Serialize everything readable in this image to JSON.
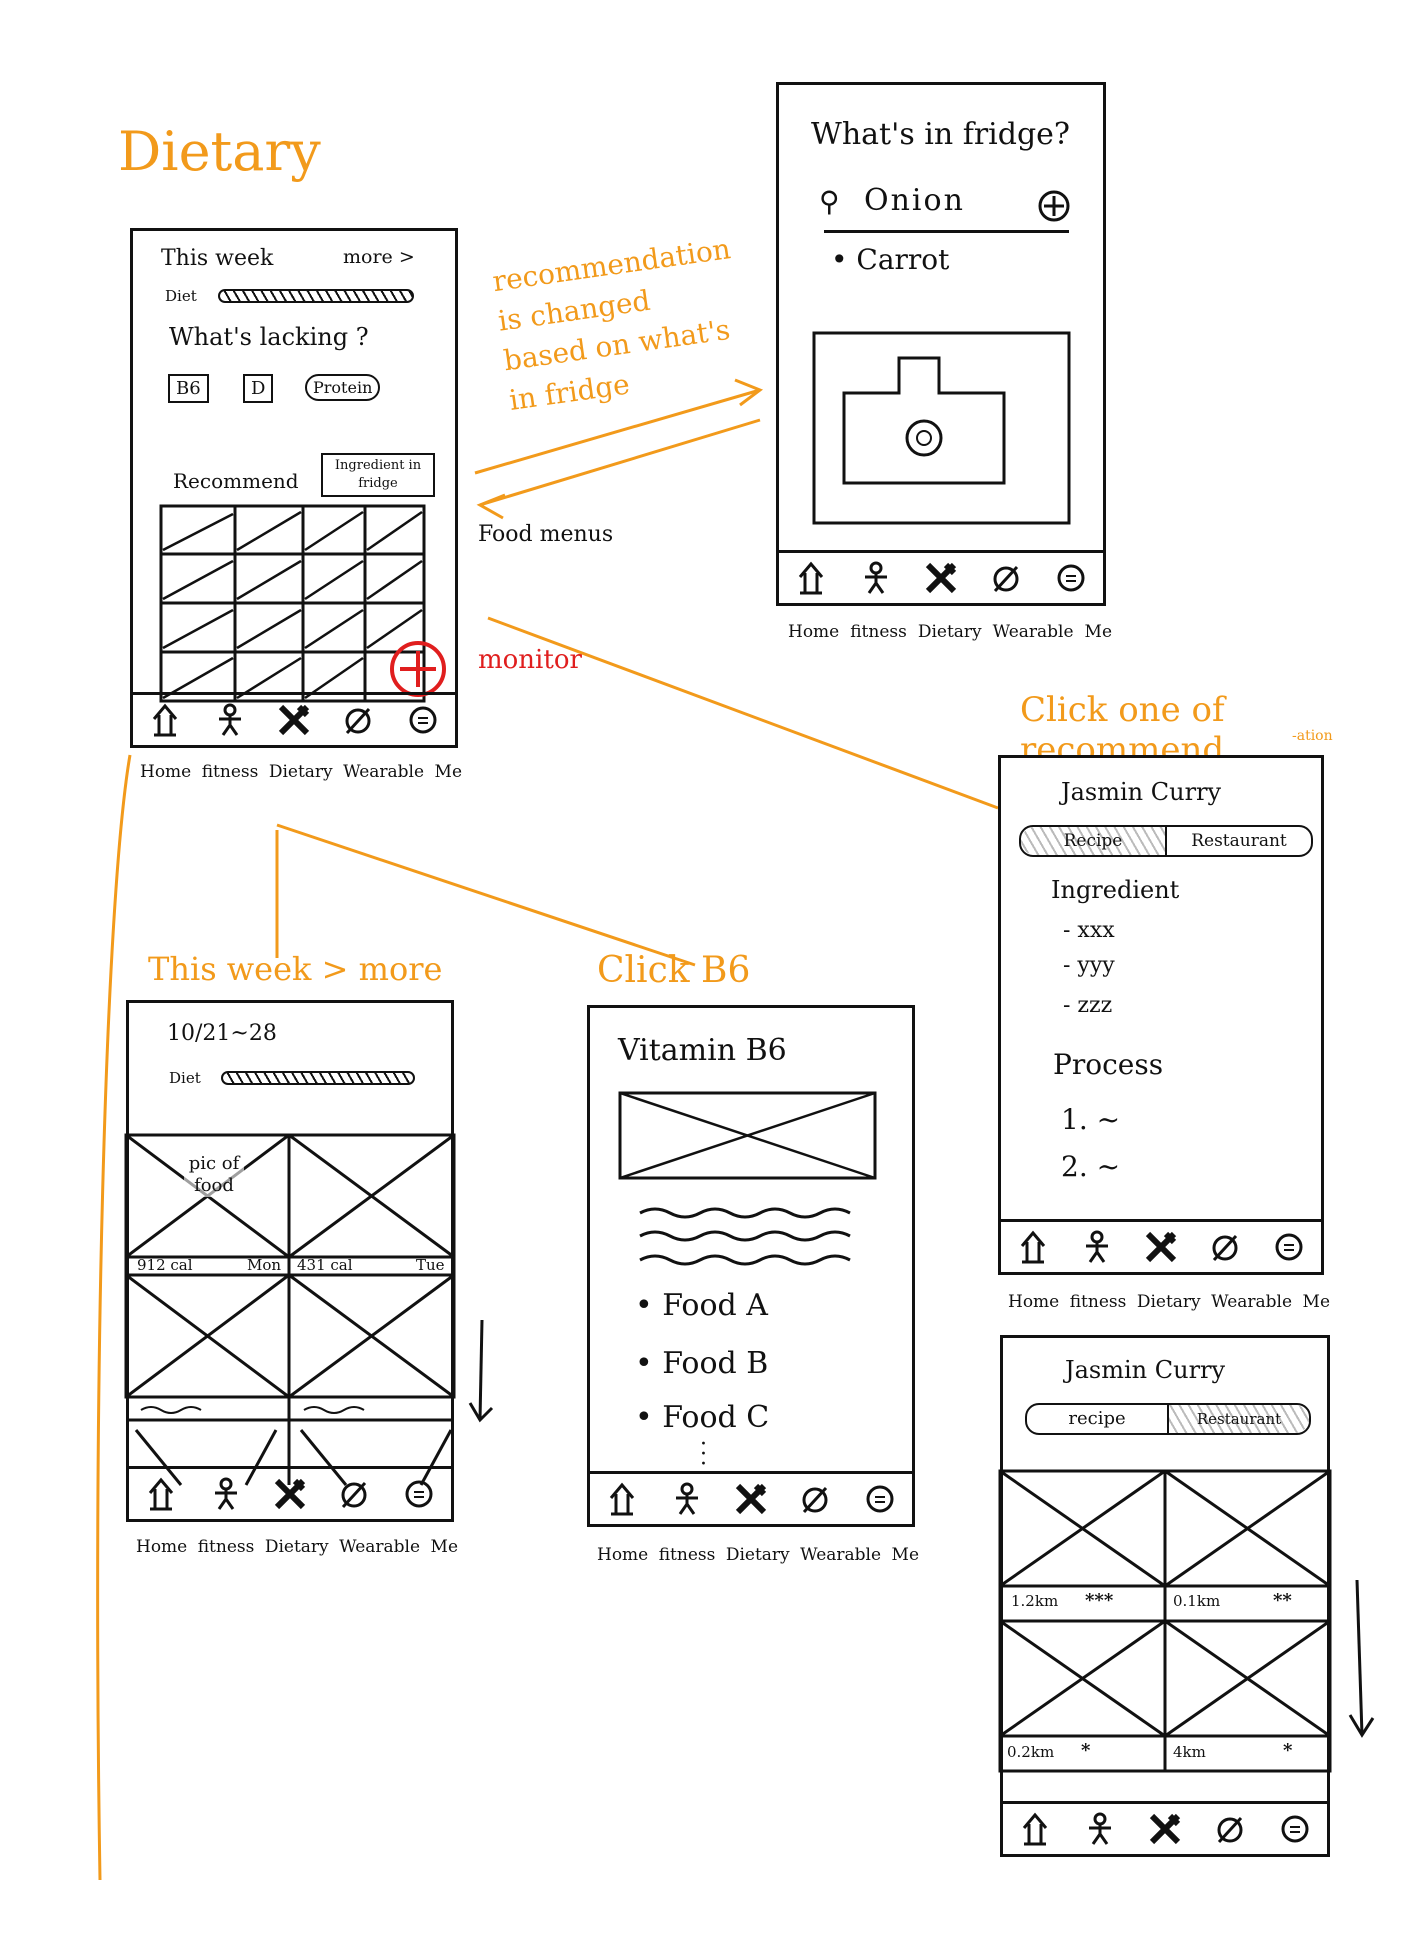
{
  "title": "Dietary",
  "nav_labels": [
    "Home",
    "fitness",
    "Dietary",
    "Wearable",
    "Me"
  ],
  "screen_main": {
    "this_week": "This week",
    "more": "more >",
    "diet": "Diet",
    "whats_lacking": "What's lacking ?",
    "nutrients": [
      "B6",
      "D",
      "Protein"
    ],
    "recommend": "Recommend",
    "ingredient_button": "Ingredient in fridge"
  },
  "screen_fridge": {
    "question": "What's in fridge?",
    "search_value": "Onion",
    "list": [
      "Carrot"
    ]
  },
  "annotations": {
    "recommendation_note": "recommendation is changed based on what's in fridge",
    "food_menus": "Food menus",
    "monitor": "monitor",
    "click_recommend": "Click one of recommend",
    "click_recommend_sub": "-ation",
    "this_week_more": "This week > more",
    "click_b6": "Click B6"
  },
  "screen_week": {
    "date_range": "10/21~28",
    "diet": "Diet",
    "pic_label": "pic of food",
    "day1_cal": "912 cal",
    "day1": "Mon",
    "day2_cal": "431 cal",
    "day2": "Tue"
  },
  "screen_b6": {
    "title": "Vitamin B6",
    "foods": [
      "Food A",
      "Food B",
      "Food C"
    ]
  },
  "screen_recipe": {
    "title": "Jasmin Curry",
    "tabs": [
      "Recipe",
      "Restaurant"
    ],
    "ingredient_header": "Ingredient",
    "ingredients": [
      "- xxx",
      "- yyy",
      "- zzz"
    ],
    "process_header": "Process",
    "steps": [
      "1. ~",
      "2. ~"
    ]
  },
  "screen_restaurant": {
    "title": "Jasmin Curry",
    "tabs": [
      "recipe",
      "Restaurant"
    ],
    "rows": [
      {
        "dist": "1.2km",
        "stars": "***"
      },
      {
        "dist": "0.1km",
        "stars": "**"
      },
      {
        "dist": "0.2km",
        "stars": "*"
      },
      {
        "dist": "4km",
        "stars": "*"
      }
    ]
  }
}
